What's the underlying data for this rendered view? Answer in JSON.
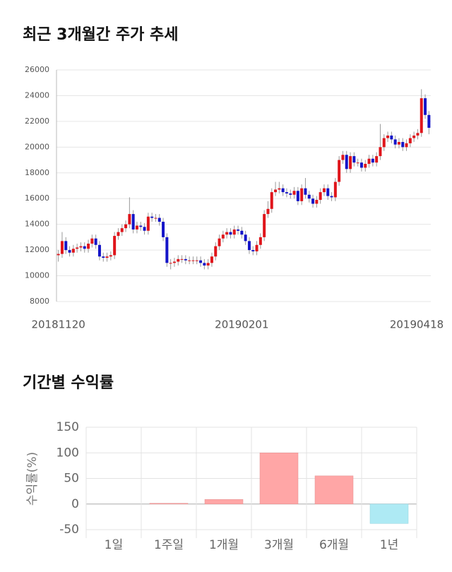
{
  "chart_data": [
    {
      "type": "candlestick",
      "title": "최근 3개월간 주가 추세",
      "categories": [
        "20181120",
        null,
        null,
        null,
        null,
        null,
        null,
        null,
        null,
        null,
        null,
        null,
        null,
        null,
        null,
        null,
        null,
        null,
        null,
        null,
        null,
        null,
        null,
        null,
        null,
        null,
        null,
        null,
        null,
        null,
        null,
        null,
        null,
        null,
        null,
        null,
        null,
        null,
        null,
        null,
        null,
        null,
        null,
        null,
        null,
        null,
        null,
        null,
        null,
        "20190201",
        null,
        null,
        null,
        null,
        null,
        null,
        null,
        null,
        null,
        null,
        null,
        null,
        null,
        null,
        null,
        null,
        null,
        null,
        null,
        null,
        null,
        null,
        null,
        null,
        null,
        null,
        null,
        null,
        null,
        null,
        null,
        null,
        null,
        null,
        null,
        null,
        null,
        null,
        null,
        null,
        null,
        null,
        null,
        null,
        null,
        null,
        null,
        null,
        null,
        "20190418"
      ],
      "open": [
        11600,
        11700,
        12700,
        12000,
        11800,
        12100,
        12200,
        12300,
        12100,
        12500,
        12900,
        12400,
        11500,
        11400,
        11500,
        11600,
        13100,
        13400,
        13700,
        14000,
        14800,
        13600,
        13900,
        13800,
        13500,
        14600,
        14500,
        14500,
        14200,
        13000,
        11000,
        11000,
        11100,
        11300,
        11300,
        11200,
        11200,
        11200,
        11200,
        11000,
        10800,
        11000,
        11500,
        12300,
        12900,
        13200,
        13400,
        13200,
        13600,
        13500,
        13200,
        12700,
        12000,
        11900,
        12400,
        13000,
        14800,
        15200,
        16500,
        16700,
        16800,
        16500,
        16400,
        16300,
        16600,
        15800,
        16800,
        16300,
        16000,
        15600,
        15900,
        16500,
        16800,
        16200,
        16100,
        17300,
        19000,
        19400,
        18300,
        19300,
        18800,
        18800,
        18400,
        18700,
        19100,
        18800,
        19300,
        20000,
        20700,
        20900,
        20600,
        20200,
        20400,
        20000,
        20300,
        20700,
        20900,
        21100,
        23800,
        22500
      ],
      "high": [
        12000,
        13400,
        13000,
        12300,
        12400,
        12500,
        12600,
        12600,
        12800,
        13200,
        13200,
        12700,
        11800,
        11800,
        11900,
        13400,
        13700,
        14000,
        14300,
        16100,
        15100,
        14200,
        14200,
        14100,
        14900,
        14900,
        14800,
        14800,
        14500,
        13300,
        11300,
        11400,
        11600,
        11600,
        11600,
        11500,
        11500,
        11500,
        11500,
        11300,
        11300,
        11800,
        12600,
        13200,
        13500,
        13700,
        13700,
        13900,
        13900,
        13800,
        13500,
        13000,
        12300,
        12700,
        13300,
        15100,
        15800,
        16800,
        17300,
        17300,
        17100,
        16800,
        16700,
        16900,
        16900,
        17100,
        17600,
        16600,
        16300,
        16200,
        16800,
        17100,
        17100,
        16500,
        17600,
        19300,
        19700,
        19700,
        19600,
        19600,
        19100,
        19100,
        19000,
        19400,
        19400,
        19600,
        21800,
        21000,
        21200,
        21200,
        20900,
        20700,
        20700,
        20600,
        21000,
        21200,
        21400,
        24500,
        24100,
        22800
      ],
      "low": [
        11100,
        11400,
        11700,
        11500,
        11500,
        11800,
        11900,
        11800,
        11800,
        12200,
        12100,
        11200,
        11100,
        11100,
        11200,
        11300,
        12800,
        13100,
        13400,
        13700,
        13300,
        13300,
        13500,
        13200,
        13200,
        14200,
        14200,
        13900,
        12700,
        10700,
        10500,
        10700,
        10800,
        11000,
        10900,
        10900,
        10900,
        10900,
        10700,
        10500,
        10500,
        10700,
        11200,
        12000,
        12600,
        12900,
        12900,
        12900,
        13200,
        12900,
        12400,
        11700,
        11600,
        11600,
        12100,
        12700,
        14500,
        14900,
        16200,
        16400,
        16200,
        16100,
        16000,
        16000,
        15500,
        15500,
        16000,
        15700,
        15300,
        15300,
        15600,
        16200,
        15900,
        15800,
        15800,
        17000,
        18700,
        18000,
        18000,
        18500,
        18500,
        18100,
        18100,
        18400,
        18500,
        18500,
        19000,
        19700,
        20400,
        20300,
        19900,
        19900,
        19700,
        19700,
        20000,
        20400,
        20600,
        20800,
        22200,
        21000
      ],
      "close": [
        11700,
        12700,
        12000,
        11800,
        12100,
        12200,
        12300,
        12100,
        12500,
        12900,
        12400,
        11500,
        11400,
        11500,
        11600,
        13100,
        13400,
        13700,
        14000,
        14800,
        13600,
        13900,
        13800,
        13500,
        14600,
        14500,
        14500,
        14200,
        13000,
        11000,
        11000,
        11100,
        11300,
        11300,
        11200,
        11200,
        11200,
        11200,
        11000,
        10800,
        11000,
        11500,
        12300,
        12900,
        13200,
        13400,
        13200,
        13600,
        13500,
        13200,
        12700,
        12000,
        11900,
        12400,
        13000,
        14800,
        15200,
        16500,
        16700,
        16800,
        16500,
        16400,
        16300,
        16600,
        15800,
        16800,
        16300,
        16000,
        15600,
        15900,
        16500,
        16800,
        16200,
        16100,
        17300,
        19000,
        19400,
        18300,
        19300,
        18800,
        18800,
        18400,
        18700,
        19100,
        18800,
        19300,
        20000,
        20700,
        20900,
        20600,
        20200,
        20400,
        20000,
        20300,
        20700,
        20900,
        21100,
        23800,
        22500,
        21500
      ],
      "up_color": "#e0151b",
      "down_color": "#1414c8",
      "ylim": [
        8000,
        26000
      ],
      "yticks": [
        8000,
        10000,
        12000,
        14000,
        16000,
        18000,
        20000,
        22000,
        24000,
        26000
      ],
      "grid": true
    },
    {
      "type": "bar",
      "title": "기간별 수익률",
      "y_label": "수익률(%)",
      "categories": [
        "1일",
        "1주일",
        "1개월",
        "3개월",
        "6개월",
        "1년"
      ],
      "values": [
        0,
        1.5,
        9,
        100,
        55,
        -38
      ],
      "positive_color": "#ffa6a6",
      "negative_color": "#aeeaf4",
      "ylim": [
        -50,
        150
      ],
      "yticks": [
        -50,
        0,
        50,
        100,
        150
      ],
      "grid": true
    }
  ]
}
